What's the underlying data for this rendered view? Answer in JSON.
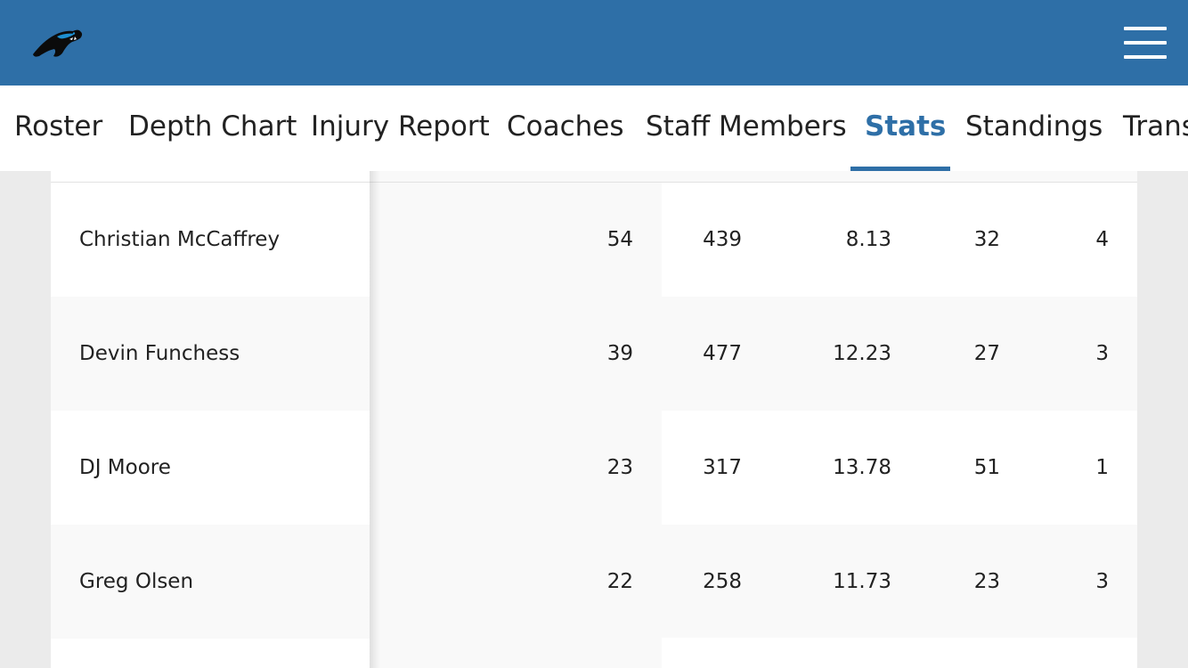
{
  "header": {
    "logo_icon": "carolina-panthers-logo",
    "menu_icon": "hamburger-menu-icon",
    "brand_color": "#2e6fa7"
  },
  "nav": {
    "items": [
      {
        "label": "Roster"
      },
      {
        "label": "Depth Chart"
      },
      {
        "label": "Injury Report"
      },
      {
        "label": "Coaches"
      },
      {
        "label": "Staff Members"
      },
      {
        "label": "Stats",
        "active": true
      },
      {
        "label": "Standings"
      },
      {
        "label": "Trans"
      }
    ]
  },
  "stats": {
    "rows": [
      {
        "name": "Christian McCaffrey",
        "values": [
          "54",
          "439",
          "8.13",
          "32",
          "4"
        ]
      },
      {
        "name": "Devin Funchess",
        "values": [
          "39",
          "477",
          "12.23",
          "27",
          "3"
        ]
      },
      {
        "name": "DJ Moore",
        "values": [
          "23",
          "317",
          "13.78",
          "51",
          "1"
        ]
      },
      {
        "name": "Greg Olsen",
        "values": [
          "22",
          "258",
          "11.73",
          "23",
          "3"
        ]
      }
    ]
  }
}
